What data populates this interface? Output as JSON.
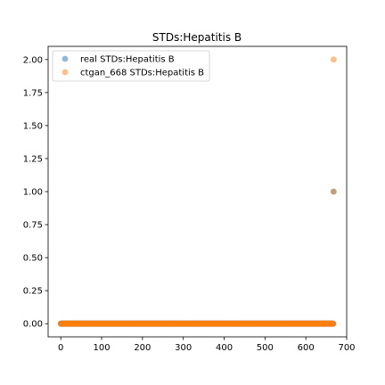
{
  "chart_data": {
    "type": "scatter",
    "title": "STDs:Hepatitis B",
    "xlabel": "",
    "ylabel": "",
    "xlim": [
      -31,
      700
    ],
    "ylim": [
      -0.1,
      2.1
    ],
    "xticks": [
      0,
      100,
      200,
      300,
      400,
      500,
      600,
      700
    ],
    "yticks": [
      0.0,
      0.25,
      0.5,
      0.75,
      1.0,
      1.25,
      1.5,
      1.75,
      2.0
    ],
    "xtick_labels": [
      "0",
      "100",
      "200",
      "300",
      "400",
      "500",
      "600",
      "700"
    ],
    "ytick_labels": [
      "0.00",
      "0.25",
      "0.50",
      "0.75",
      "1.00",
      "1.25",
      "1.50",
      "1.75",
      "2.00"
    ],
    "grid": false,
    "legend_position": "top-left",
    "series": [
      {
        "name": "real STDs:Hepatitis B",
        "color": "#1f77b4",
        "points": [
          {
            "x_start": 0,
            "x_end": 667,
            "y": 0
          },
          {
            "x": 668,
            "y": 1
          }
        ]
      },
      {
        "name": "ctgan_668 STDs:Hepatitis B",
        "color": "#ff7f0e",
        "points": [
          {
            "x_start": 0,
            "x_end": 667,
            "y": 0
          },
          {
            "x": 668,
            "y": 1
          },
          {
            "x": 668,
            "y": 2
          }
        ]
      }
    ]
  }
}
